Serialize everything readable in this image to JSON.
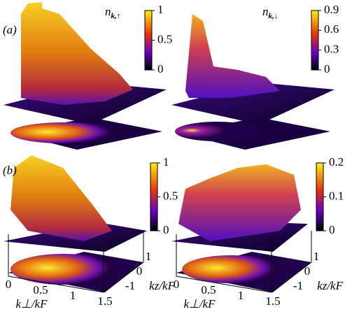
{
  "chart_data": [
    {
      "type": "surface3d",
      "panel_label": "(a)",
      "title": {
        "symbol": "n",
        "subscript": "k,↑"
      },
      "zlim": [
        0,
        1
      ],
      "zticks": [
        0,
        0.5,
        1
      ]
    },
    {
      "type": "surface3d",
      "title": {
        "symbol": "n",
        "subscript": "k,↓"
      },
      "zlim": [
        0,
        0.9
      ],
      "zticks": [
        0,
        0.3,
        0.6,
        0.9
      ]
    },
    {
      "type": "surface3d",
      "panel_label": "(b)",
      "zlim": [
        0,
        1
      ],
      "zticks": [
        0,
        0.5,
        1
      ],
      "xlabel": "k⊥/kF",
      "ylabel": "kz/kF",
      "xlim": [
        0,
        1.5
      ],
      "xticks": [
        0,
        0.5,
        1,
        1.5
      ],
      "ylim": [
        -1,
        1
      ],
      "yticks": [
        -1,
        0,
        1
      ]
    },
    {
      "type": "surface3d",
      "zlim": [
        0,
        0.2
      ],
      "zticks": [
        0,
        0.1,
        0.2
      ],
      "xlabel": "k⊥/kF",
      "ylabel": "kz/kF",
      "xlim": [
        0,
        1.5
      ],
      "xticks": [
        0,
        0.5,
        1,
        1.5
      ],
      "ylim": [
        -1,
        1
      ],
      "yticks": [
        -1,
        0,
        1
      ]
    }
  ]
}
